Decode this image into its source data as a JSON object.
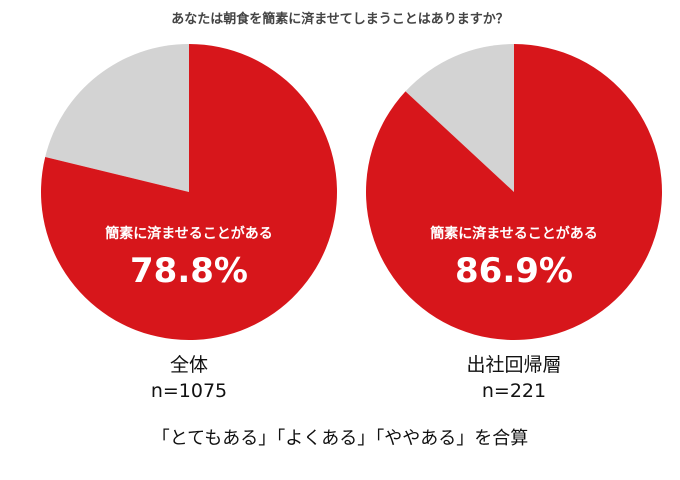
{
  "chart_data": {
    "type": "pie",
    "title": "あなたは朝食を簡素に済ませてしまうことはありますか？",
    "colors": {
      "yes": "#d7161b",
      "other": "#d3d3d3"
    },
    "charts": [
      {
        "group": "全体",
        "n": "n=1075",
        "label": "簡素に済ませることがある",
        "value": 78.8,
        "value_text": "78.8%"
      },
      {
        "group": "出社回帰層",
        "n": "n=221",
        "label": "簡素に済ませることがある",
        "value": 86.9,
        "value_text": "86.9%"
      }
    ],
    "note": "「とてもある」「よくある」「ややある」を合算"
  }
}
